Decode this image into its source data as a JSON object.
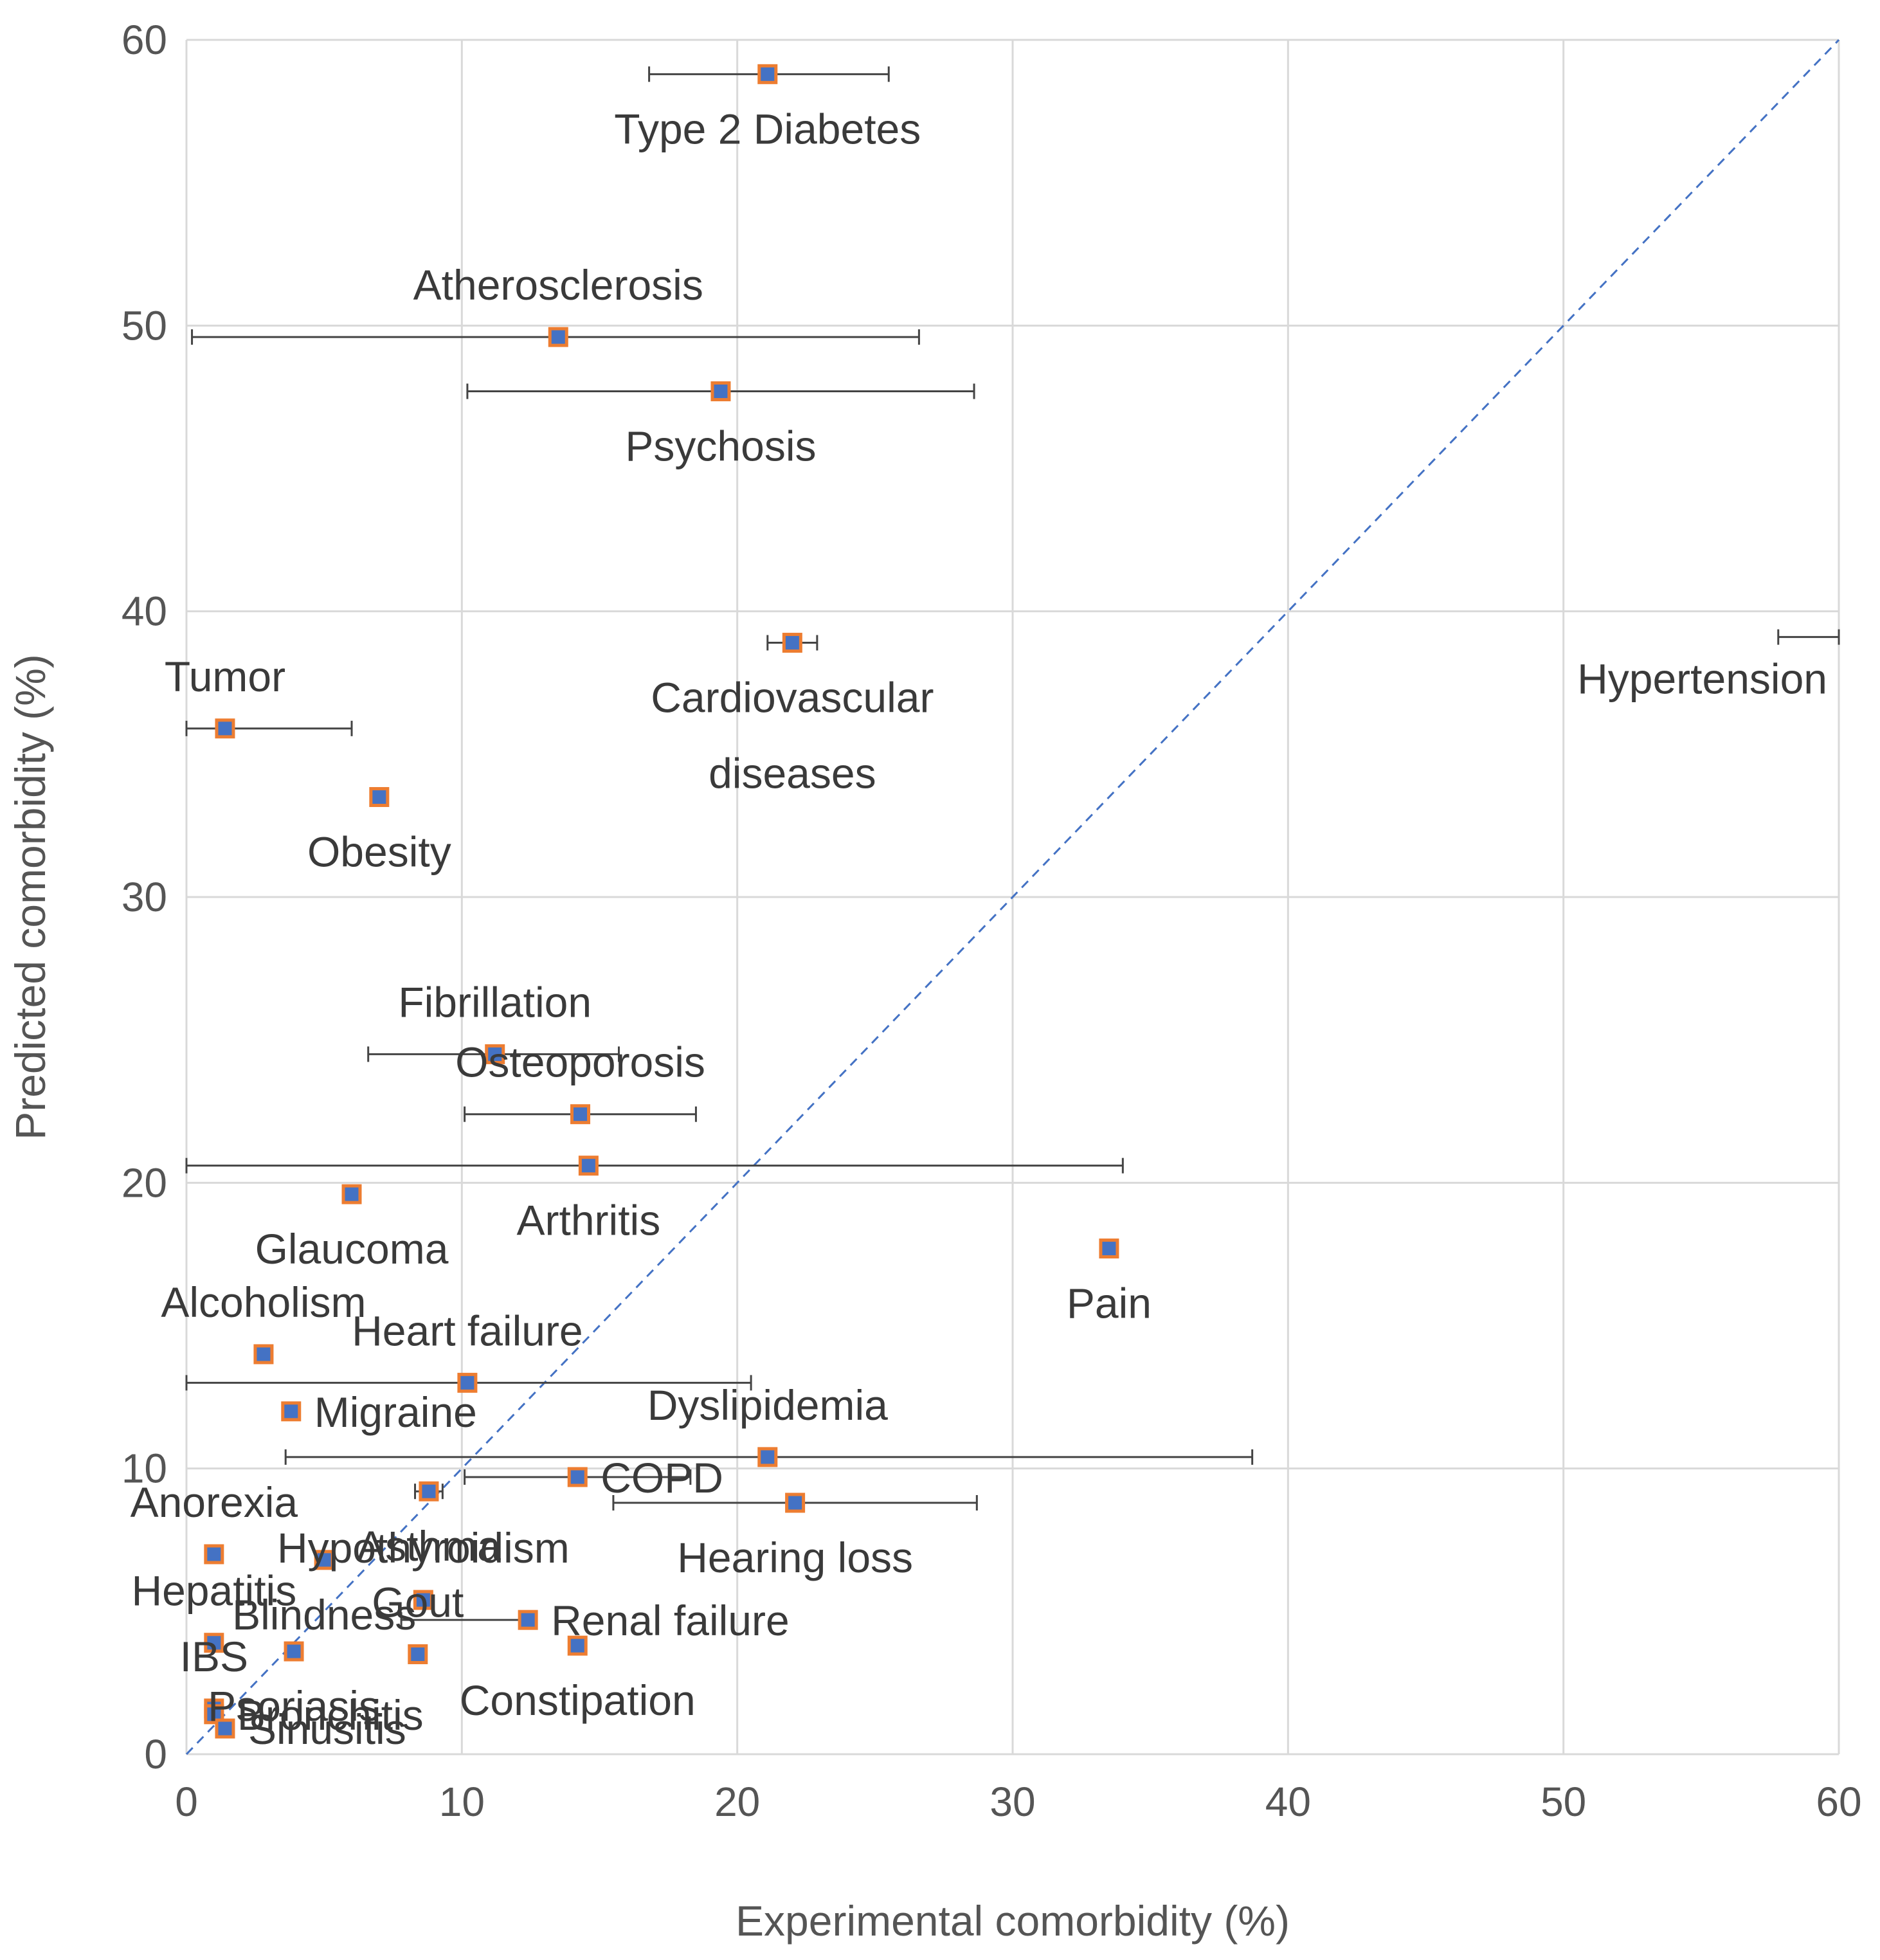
{
  "chart_data": {
    "type": "scatter",
    "title": "",
    "xlabel": "Experimental comorbidity (%)",
    "ylabel": "Predicted comorbidity (%)",
    "xlim": [
      0,
      60
    ],
    "ylim": [
      0,
      60
    ],
    "xticks": [
      "0",
      "10",
      "20",
      "30",
      "40",
      "50",
      "60"
    ],
    "yticks": [
      "0",
      "10",
      "20",
      "30",
      "40",
      "50",
      "60"
    ],
    "grid": true,
    "reference_line": "y = x",
    "colors": {
      "marker_fill": "#4472c4",
      "marker_edge": "#ed7d31",
      "error_bar": "#444444",
      "reference": "#4472c4",
      "grid": "#d9d9d9"
    },
    "points": [
      {
        "label": "Type 2 Diabetes",
        "x": 21.1,
        "y": 58.8,
        "xerr": [
          16.8,
          25.5
        ],
        "label_pos": "below"
      },
      {
        "label": "Atherosclerosis",
        "x": 13.5,
        "y": 49.6,
        "xerr": [
          0.2,
          26.6
        ],
        "label_pos": "above"
      },
      {
        "label": "Psychosis",
        "x": 19.4,
        "y": 47.7,
        "xerr": [
          10.2,
          28.6
        ],
        "label_pos": "below"
      },
      {
        "label": "Cardiovascular diseases",
        "x": 22.0,
        "y": 38.9,
        "xerr": [
          21.1,
          22.9
        ],
        "label_pos": "below-2"
      },
      {
        "label": "Hypertension",
        "x": 60.0,
        "y": 39.1,
        "xerr": [
          57.8,
          60.0
        ],
        "label_pos": "below-left",
        "marker": false
      },
      {
        "label": "Tumor",
        "x": 1.4,
        "y": 35.9,
        "xerr": [
          0.0,
          6.0
        ],
        "label_pos": "above"
      },
      {
        "label": "Obesity",
        "x": 7.0,
        "y": 33.5,
        "xerr": null,
        "label_pos": "below"
      },
      {
        "label": "Fibrillation",
        "x": 11.2,
        "y": 24.5,
        "xerr": [
          6.6,
          15.7
        ],
        "label_pos": "above"
      },
      {
        "label": "Osteoporosis",
        "x": 14.3,
        "y": 22.4,
        "xerr": [
          10.1,
          18.5
        ],
        "label_pos": "above"
      },
      {
        "label": "Arthritis",
        "x": 14.6,
        "y": 20.6,
        "xerr": [
          0.0,
          34.0
        ],
        "label_pos": "below"
      },
      {
        "label": "Glaucoma",
        "x": 6.0,
        "y": 19.6,
        "xerr": null,
        "label_pos": "below"
      },
      {
        "label": "Pain",
        "x": 33.5,
        "y": 17.7,
        "xerr": null,
        "label_pos": "below"
      },
      {
        "label": "Alcoholism",
        "x": 2.8,
        "y": 14.0,
        "xerr": null,
        "label_pos": "above"
      },
      {
        "label": "Heart failure",
        "x": 10.2,
        "y": 13.0,
        "xerr": [
          0.0,
          20.5
        ],
        "label_pos": "above"
      },
      {
        "label": "Migraine",
        "x": 3.8,
        "y": 12.0,
        "xerr": null,
        "label_pos": "right"
      },
      {
        "label": "Dyslipidemia",
        "x": 21.1,
        "y": 10.4,
        "xerr": [
          3.6,
          38.7
        ],
        "label_pos": "above"
      },
      {
        "label": "COPD",
        "x": 14.2,
        "y": 9.7,
        "xerr": [
          10.1,
          18.3
        ],
        "label_pos": "right"
      },
      {
        "label": "Asthma",
        "x": 8.8,
        "y": 9.2,
        "xerr": [
          8.3,
          9.3
        ],
        "label_pos": "below"
      },
      {
        "label": "Hearing loss",
        "x": 22.1,
        "y": 8.8,
        "xerr": [
          15.5,
          28.7
        ],
        "label_pos": "below"
      },
      {
        "label": "Anorexia",
        "x": 1.0,
        "y": 7.0,
        "xerr": null,
        "label_pos": "above"
      },
      {
        "label": "Blindness",
        "x": 5.0,
        "y": 6.8,
        "xerr": null,
        "label_pos": "below"
      },
      {
        "label": "Hypothyroidism",
        "x": 8.6,
        "y": 5.4,
        "xerr": null,
        "label_pos": "above"
      },
      {
        "label": "Renal failure",
        "x": 12.4,
        "y": 4.7,
        "xerr": [
          7.8,
          12.4
        ],
        "label_pos": "right"
      },
      {
        "label": "Hepatitis",
        "x": 1.0,
        "y": 3.9,
        "xerr": null,
        "label_pos": "above"
      },
      {
        "label": "Gout",
        "x": 8.4,
        "y": 3.5,
        "xerr": null,
        "label_pos": "above"
      },
      {
        "label": "Constipation",
        "x": 14.2,
        "y": 3.8,
        "xerr": null,
        "label_pos": "below"
      },
      {
        "label": "Psoriasis",
        "x": 3.9,
        "y": 3.6,
        "xerr": null,
        "label_pos": "below"
      },
      {
        "label": "IBS",
        "x": 1.0,
        "y": 1.6,
        "xerr": null,
        "label_pos": "above"
      },
      {
        "label": "Bronchitis",
        "x": 1.0,
        "y": 1.4,
        "xerr": null,
        "label_pos": "right"
      },
      {
        "label": "Sinusitis",
        "x": 1.4,
        "y": 0.9,
        "xerr": null,
        "label_pos": "right"
      }
    ]
  }
}
